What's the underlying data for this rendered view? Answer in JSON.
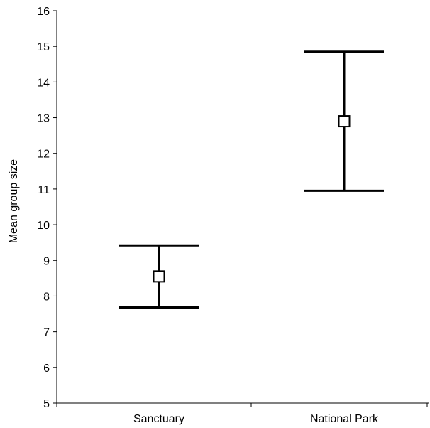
{
  "chart_data": {
    "type": "errorbar",
    "ylabel": "Mean group size",
    "xlabel": "",
    "ylim": [
      5,
      16
    ],
    "yticks": [
      "5",
      "6",
      "7",
      "8",
      "9",
      "10",
      "11",
      "12",
      "13",
      "14",
      "15",
      "16"
    ],
    "categories": [
      "Sanctuary",
      "National Park"
    ],
    "series": [
      {
        "means": [
          8.55,
          12.9
        ],
        "lower": [
          7.68,
          10.95
        ],
        "upper": [
          9.42,
          14.85
        ]
      }
    ],
    "grid": false,
    "legend": "none",
    "colors": {
      "line": "#000000",
      "marker_fill": "#ffffff"
    }
  }
}
